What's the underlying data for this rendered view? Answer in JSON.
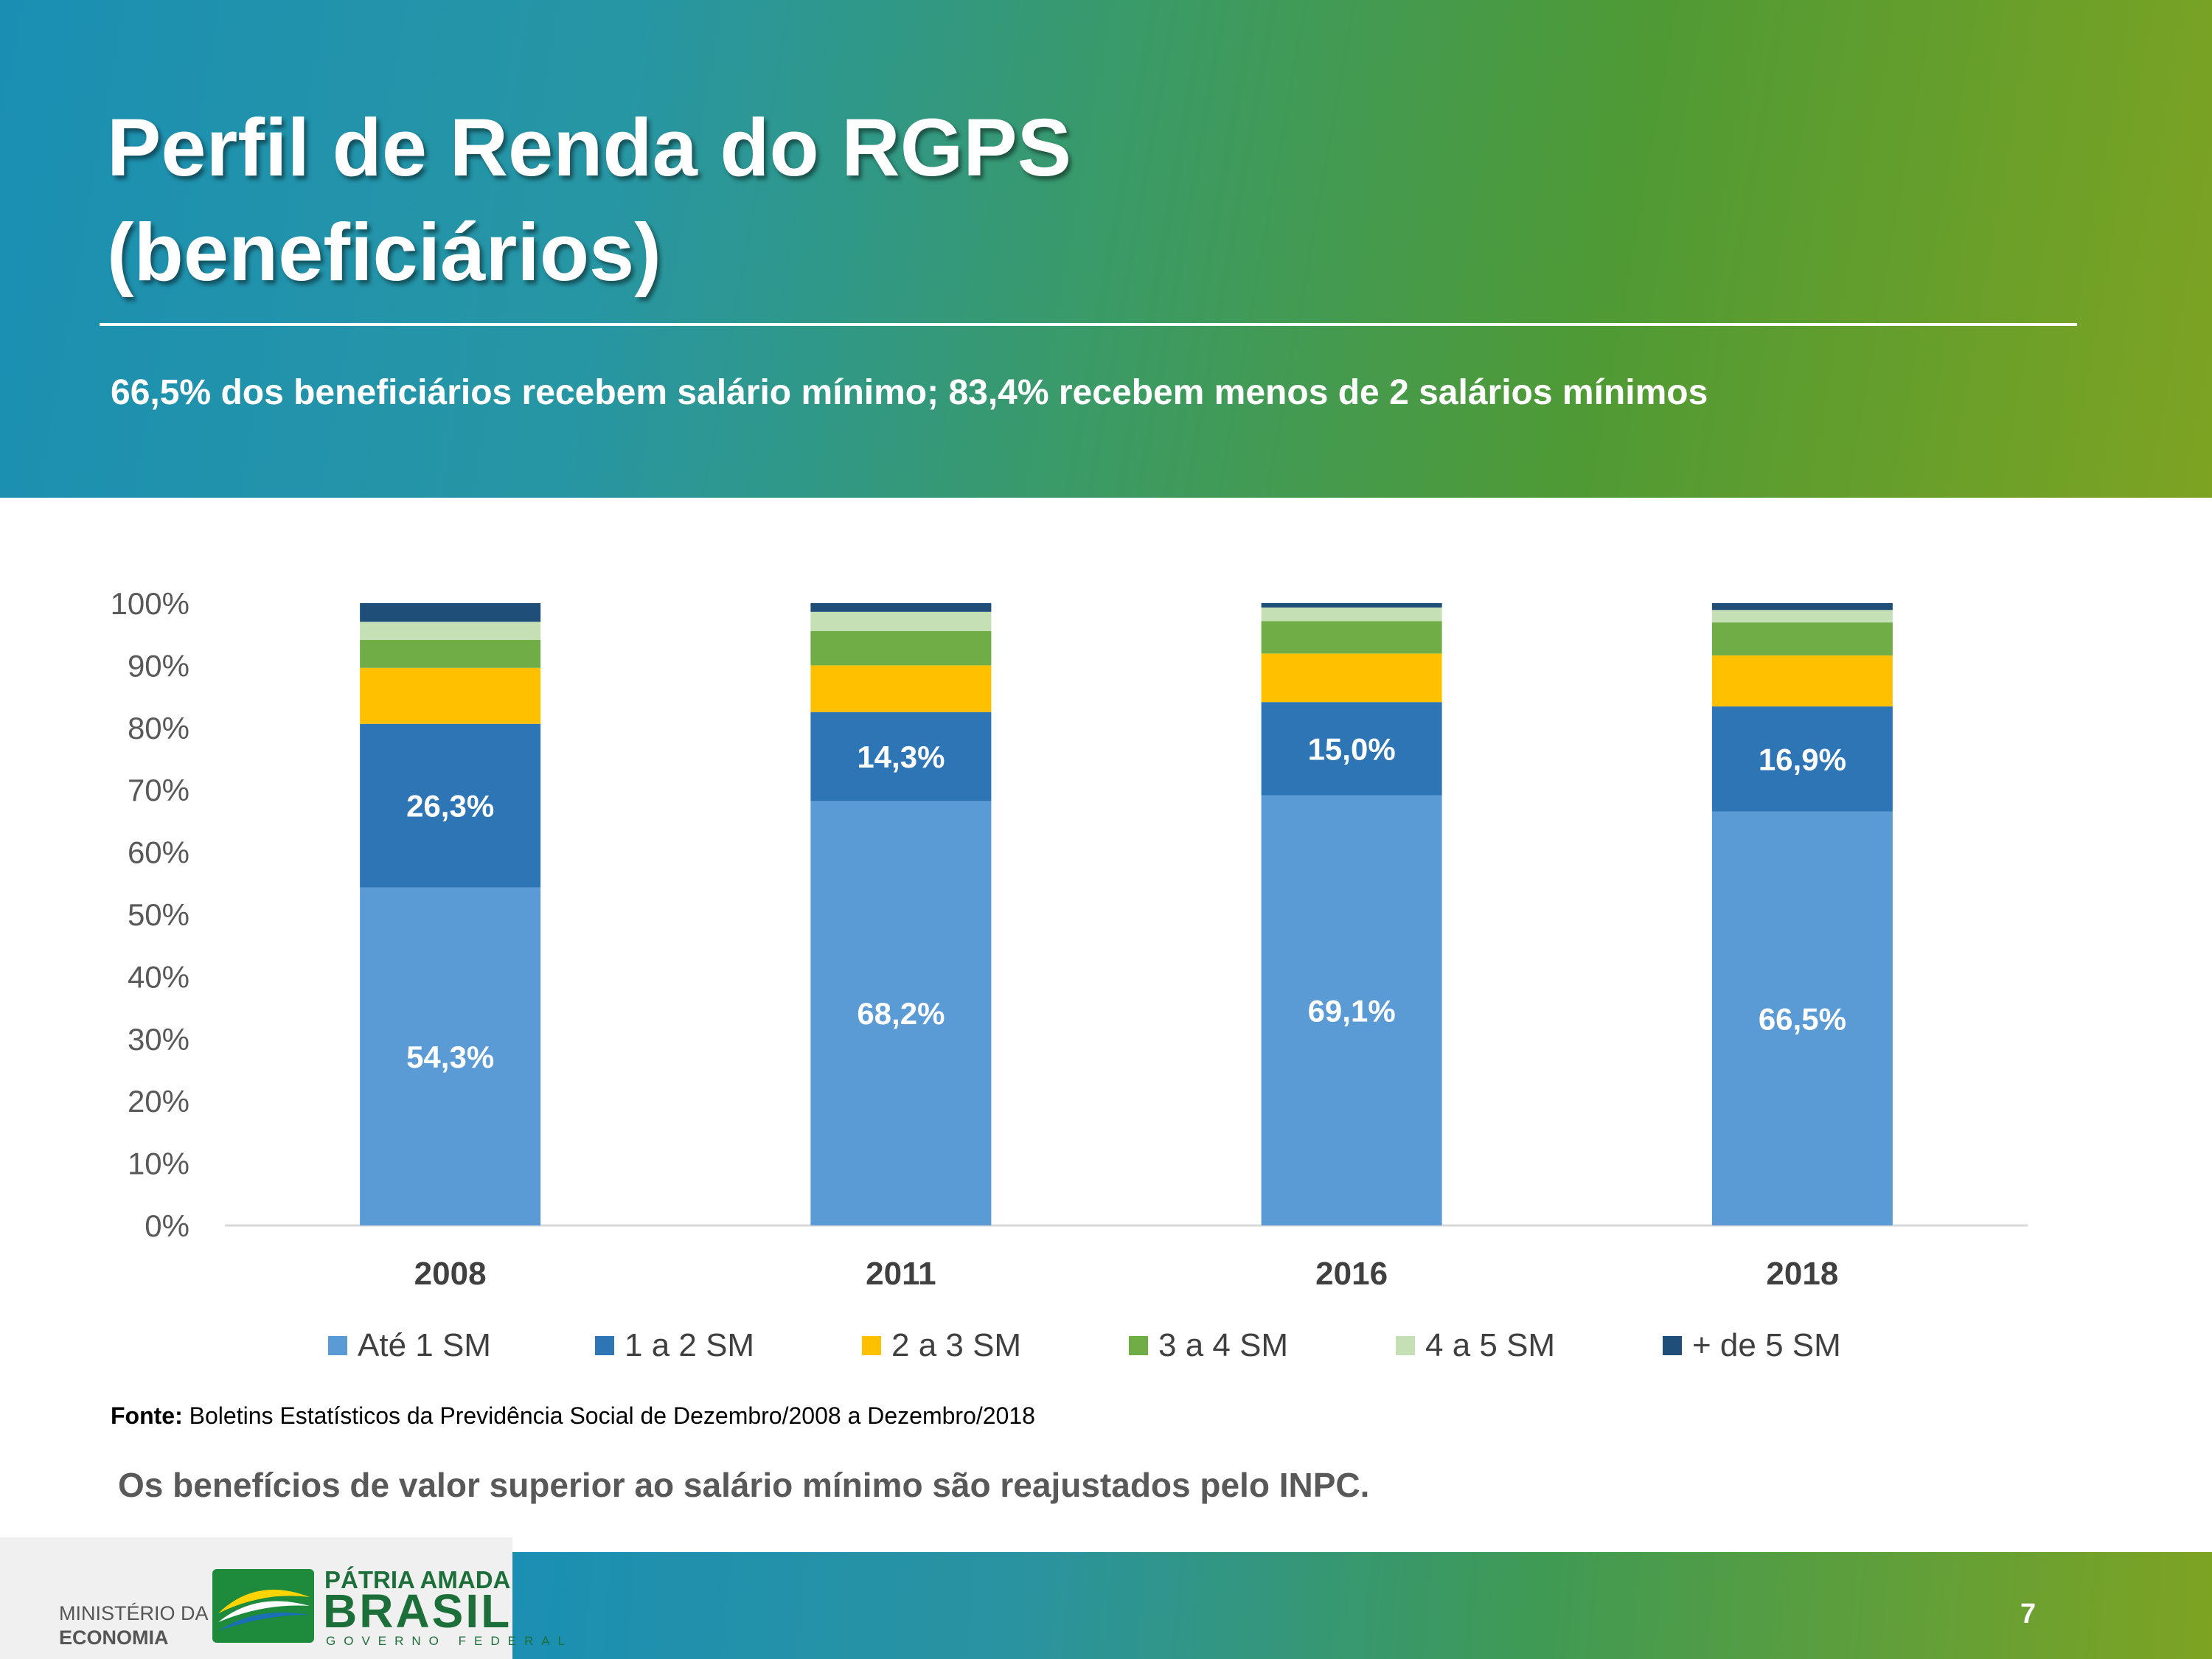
{
  "header": {
    "title_line1": "Perfil de Renda do RGPS",
    "title_line2": "(beneficiários)",
    "subtitle": "66,5% dos beneficiários recebem salário mínimo; 83,4% recebem menos de 2 salários mínimos"
  },
  "chart_data": {
    "type": "bar",
    "stacked": true,
    "categories": [
      "2008",
      "2011",
      "2016",
      "2018"
    ],
    "series": [
      {
        "name": "Até 1 SM",
        "color": "#5b9bd5",
        "values": [
          54.3,
          68.2,
          69.1,
          66.5
        ],
        "labels": [
          "54,3%",
          "68,2%",
          "69,1%",
          "66,5%"
        ]
      },
      {
        "name": "1 a 2 SM",
        "color": "#2e75b6",
        "values": [
          26.3,
          14.3,
          15.0,
          16.9
        ],
        "labels": [
          "26,3%",
          "14,3%",
          "15,0%",
          "16,9%"
        ]
      },
      {
        "name": "2 a 3 SM",
        "color": "#ffc000",
        "values": [
          9.0,
          7.5,
          7.8,
          8.2
        ],
        "labels": null
      },
      {
        "name": "3 a 4 SM",
        "color": "#70ad47",
        "values": [
          4.5,
          5.5,
          5.2,
          5.3
        ],
        "labels": null
      },
      {
        "name": "4 a 5 SM",
        "color": "#c5e0b4",
        "values": [
          2.9,
          3.1,
          2.2,
          2.0
        ],
        "labels": null
      },
      {
        "name": "+ de 5 SM",
        "color": "#1f4e79",
        "values": [
          3.0,
          1.4,
          0.7,
          1.1
        ],
        "labels": null
      }
    ],
    "y_ticks": [
      "0%",
      "10%",
      "20%",
      "30%",
      "40%",
      "50%",
      "60%",
      "70%",
      "80%",
      "90%",
      "100%"
    ],
    "ylim": [
      0,
      100
    ],
    "legend_position": "bottom"
  },
  "source": {
    "label": "Fonte:",
    "text": " Boletins Estatísticos da Previdência Social de Dezembro/2008 a Dezembro/2018"
  },
  "note": "Os benefícios de valor superior ao salário mínimo são reajustados pelo INPC.",
  "footer": {
    "ministry_line1": "MINISTÉRIO DA",
    "ministry_line2": "ECONOMIA",
    "brand_line1": "PÁTRIA AMADA",
    "brand_line2": "BRASIL",
    "brand_line3": "GOVERNO FEDERAL",
    "page_number": "7"
  }
}
